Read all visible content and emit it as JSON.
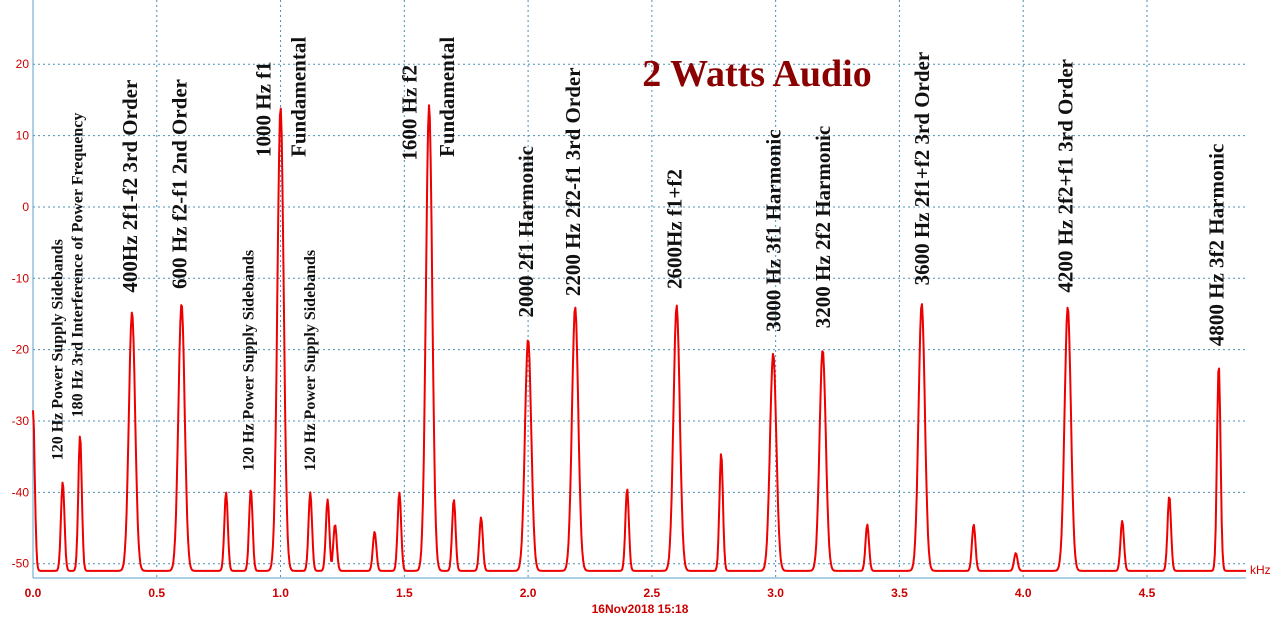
{
  "chart_data": {
    "type": "line",
    "title": "2 Watts Audio",
    "x_unit": "kHz",
    "timestamp": "16Nov2018  15:18",
    "xlim": [
      0.0,
      4.9
    ],
    "ylim": [
      -52,
      29
    ],
    "x_ticks": [
      0.0,
      0.5,
      1.0,
      1.5,
      2.0,
      2.5,
      3.0,
      3.5,
      4.0,
      4.5
    ],
    "x_tick_labels": [
      "0.0",
      "0.5",
      "1.0",
      "1.5",
      "2.0",
      "2.5",
      "3.0",
      "3.5",
      "4.0",
      "4.5"
    ],
    "y_ticks": [
      20,
      10,
      0,
      -10,
      -20,
      -30,
      -40,
      -50
    ],
    "y_tick_labels": [
      "20",
      "10",
      "0",
      "-10",
      "-20",
      "-30",
      "-40",
      "-50"
    ],
    "grid": true,
    "line_color": "#ee0000",
    "noise_floor": -51,
    "series": [
      {
        "peaks": [
          {
            "x": 0.0,
            "y": -28.5
          },
          {
            "x": 0.12,
            "y": -38.5
          },
          {
            "x": 0.19,
            "y": -32.0
          },
          {
            "x": 0.4,
            "y": -14.7
          },
          {
            "x": 0.6,
            "y": -13.5
          },
          {
            "x": 0.78,
            "y": -40.0
          },
          {
            "x": 0.88,
            "y": -39.5
          },
          {
            "x": 1.0,
            "y": 14.0
          },
          {
            "x": 1.12,
            "y": -40.0
          },
          {
            "x": 1.19,
            "y": -41.0
          },
          {
            "x": 1.22,
            "y": -44.5
          },
          {
            "x": 1.38,
            "y": -45.5
          },
          {
            "x": 1.48,
            "y": -40.0
          },
          {
            "x": 1.6,
            "y": 14.3
          },
          {
            "x": 1.7,
            "y": -41.0
          },
          {
            "x": 1.81,
            "y": -43.5
          },
          {
            "x": 2.0,
            "y": -18.5
          },
          {
            "x": 2.19,
            "y": -14.0
          },
          {
            "x": 2.4,
            "y": -39.5
          },
          {
            "x": 2.6,
            "y": -13.8
          },
          {
            "x": 2.78,
            "y": -34.5
          },
          {
            "x": 2.99,
            "y": -20.5
          },
          {
            "x": 3.19,
            "y": -20.0
          },
          {
            "x": 3.37,
            "y": -44.5
          },
          {
            "x": 3.59,
            "y": -13.5
          },
          {
            "x": 3.8,
            "y": -44.5
          },
          {
            "x": 3.97,
            "y": -48.5
          },
          {
            "x": 4.18,
            "y": -14.0
          },
          {
            "x": 4.4,
            "y": -44.0
          },
          {
            "x": 4.59,
            "y": -40.5
          },
          {
            "x": 4.79,
            "y": -22.0
          }
        ]
      }
    ],
    "annotations": [
      {
        "text": "120 Hz Power Supply Sidebands",
        "size": "small",
        "x": 0.12,
        "y": -35.5
      },
      {
        "text": "180 Hz 3rd Interference of Power Frequency",
        "size": "small",
        "x": 0.2,
        "y": -29.5
      },
      {
        "text": "400Hz  2f1-f2  3rd Order",
        "size": "big",
        "x": 0.42,
        "y": -12.0
      },
      {
        "text": "600 Hz  f2-f1  2nd Order",
        "size": "big",
        "x": 0.62,
        "y": -11.5
      },
      {
        "text": "120 Hz Power Supply Sidebands",
        "size": "small",
        "x": 0.89,
        "y": -37.0
      },
      {
        "text": "1000 Hz  f1",
        "size": "big",
        "x": 0.96,
        "y": 7.0
      },
      {
        "text": "Fundamental",
        "size": "big",
        "x": 1.1,
        "y": 7.0
      },
      {
        "text": "120 Hz Power Supply Sidebands",
        "size": "small",
        "x": 1.14,
        "y": -37.0
      },
      {
        "text": "1600 Hz  f2",
        "size": "big",
        "x": 1.55,
        "y": 6.5
      },
      {
        "text": "Fundamental",
        "size": "big",
        "x": 1.7,
        "y": 7.0
      },
      {
        "text": "2000  2f1  Harmonic",
        "size": "big",
        "x": 2.02,
        "y": -15.5
      },
      {
        "text": "2200 Hz  2f2-f1  3rd Order",
        "size": "big",
        "x": 2.21,
        "y": -12.5
      },
      {
        "text": "2600Hz   f1+f2",
        "size": "big",
        "x": 2.62,
        "y": -11.5
      },
      {
        "text": "3000 Hz  3f1 Harmonic",
        "size": "big",
        "x": 3.02,
        "y": -17.5
      },
      {
        "text": "3200 Hz 2f2 Harmonic",
        "size": "big",
        "x": 3.22,
        "y": -17.0
      },
      {
        "text": "3600 Hz  2f1+f2  3rd Order",
        "size": "big",
        "x": 3.62,
        "y": -11.0
      },
      {
        "text": "4200 Hz  2f2+f1  3rd Order",
        "size": "big",
        "x": 4.2,
        "y": -12.0
      },
      {
        "text": "4800 Hz 3f2 Harmonic",
        "size": "big",
        "x": 4.81,
        "y": -19.5
      }
    ]
  }
}
